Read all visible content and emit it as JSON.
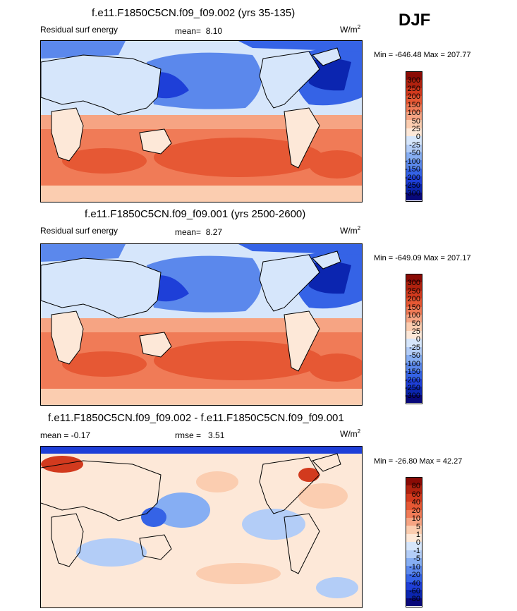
{
  "season": "DJF",
  "palette": {
    "full": [
      "#08087a",
      "#0b25b0",
      "#1e3fd8",
      "#3563e6",
      "#5b88ec",
      "#86aef3",
      "#b3cdf7",
      "#d6e6fb",
      "#fde8d8",
      "#fbcdb0",
      "#f6a483",
      "#f07b57",
      "#e65834",
      "#d23a1e",
      "#b0220f",
      "#8a0b05"
    ],
    "ocean_warm": "#f07b57",
    "ocean_warm_light": "#f6a483",
    "ocean_cold": "#3563e6",
    "ocean_pale": "#d6e6fb",
    "land": "#d6e6fb",
    "diff_base": "#fde8d8"
  },
  "panels": [
    {
      "title": "f.e11.F1850C5CN.f09_f09.002 (yrs 35-135)",
      "left_label": "Residual surf energy",
      "stat_label": "mean=",
      "stat_value": "8.10",
      "units": "W/m",
      "units_sup": "2",
      "minmax": "Min = -646.48 Max = 207.77",
      "colorbar_labels": [
        "300",
        "250",
        "200",
        "150",
        "100",
        "50",
        "25",
        "0",
        "-25",
        "-50",
        "-100",
        "-150",
        "-200",
        "-250",
        "-300"
      ]
    },
    {
      "title": "f.e11.F1850C5CN.f09_f09.001 (yrs 2500-2600)",
      "left_label": "Residual surf energy",
      "stat_label": "mean=",
      "stat_value": "8.27",
      "units": "W/m",
      "units_sup": "2",
      "minmax": "Min = -649.09 Max = 207.17",
      "colorbar_labels": [
        "300",
        "250",
        "200",
        "150",
        "100",
        "50",
        "25",
        "0",
        "-25",
        "-50",
        "-100",
        "-150",
        "-200",
        "-250",
        "-300"
      ]
    },
    {
      "title": "f.e11.F1850C5CN.f09_f09.002 - f.e11.F1850C5CN.f09_f09.001",
      "left_label": "mean =  -0.17",
      "stat_label": "rmse =",
      "stat_value": "3.51",
      "units": "W/m",
      "units_sup": "2",
      "minmax": "Min = -26.80 Max =  42.27",
      "colorbar_labels": [
        "80",
        "60",
        "40",
        "20",
        "10",
        "5",
        "1",
        "0",
        "-1",
        "-5",
        "-10",
        "-20",
        "-40",
        "-60",
        "-80"
      ]
    }
  ]
}
